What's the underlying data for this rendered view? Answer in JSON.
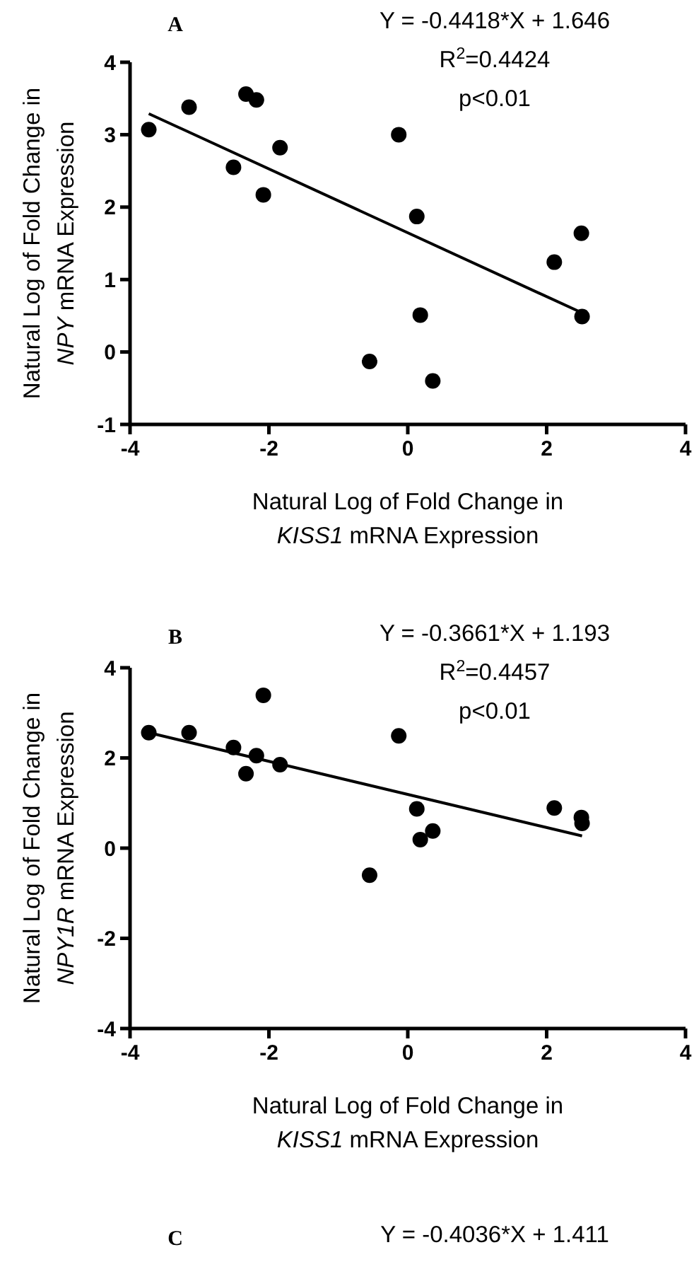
{
  "chart_data": [
    {
      "type": "scatter",
      "title": "A",
      "xlabel": "Natural Log of Fold Change in\nKISS1 mRNA Expression",
      "ylabel": "Natural Log of Fold Change in\nNPY mRNA Expression",
      "annotations": [
        "Y = -0.4418*X + 1.646",
        "R$^{2}$=0.4424",
        "p<0.01"
      ],
      "xlim": [
        -4,
        4
      ],
      "ylim": [
        -1,
        4
      ],
      "xticks": [
        -4,
        -2,
        0,
        2,
        4
      ],
      "yticks": [
        -1,
        0,
        1,
        2,
        3,
        4
      ],
      "grid": false,
      "series": [
        {
          "type": "scatter",
          "marker": "circle",
          "color": "#000000",
          "x": [
            -3.73,
            -3.15,
            -2.33,
            -2.18,
            -2.51,
            -2.08,
            -1.84,
            -0.13,
            0.13,
            0.18,
            -0.55,
            0.36,
            2.11,
            2.5,
            2.51
          ],
          "values": [
            3.07,
            3.38,
            3.56,
            3.48,
            2.55,
            2.17,
            2.82,
            3.0,
            1.87,
            0.51,
            -0.13,
            -0.4,
            1.24,
            1.64,
            0.49
          ]
        },
        {
          "type": "line",
          "color": "#000000",
          "x": [
            -3.73,
            2.51
          ],
          "values": [
            3.29,
            0.54
          ]
        }
      ]
    },
    {
      "type": "scatter",
      "title": "B",
      "xlabel": "Natural Log of Fold Change in\nKISS1 mRNA Expression",
      "ylabel": "Natural Log of Fold Change in\nNPY1R mRNA Expression",
      "annotations": [
        "Y = -0.3661*X + 1.193",
        "R$^{2}$=0.4457",
        "p<0.01"
      ],
      "xlim": [
        -4,
        4
      ],
      "ylim": [
        -4,
        4
      ],
      "xticks": [
        -4,
        -2,
        0,
        2,
        4
      ],
      "yticks": [
        -4,
        -2,
        0,
        2,
        4
      ],
      "grid": false,
      "series": [
        {
          "type": "scatter",
          "marker": "circle",
          "color": "#000000",
          "x": [
            -3.73,
            -3.15,
            -2.51,
            -2.33,
            -2.18,
            -2.08,
            -1.84,
            -0.13,
            0.13,
            0.18,
            0.36,
            -0.55,
            2.11,
            2.5,
            2.51
          ],
          "values": [
            2.56,
            2.56,
            2.23,
            1.65,
            2.05,
            3.39,
            1.85,
            2.49,
            0.87,
            0.19,
            0.38,
            -0.6,
            0.89,
            0.68,
            0.55
          ]
        },
        {
          "type": "line",
          "color": "#000000",
          "x": [
            -3.73,
            2.51
          ],
          "values": [
            2.56,
            0.27
          ]
        }
      ]
    },
    {
      "type": "other",
      "title": "C",
      "annotations": [
        "Y = -0.4036*X + 1.411"
      ]
    }
  ]
}
